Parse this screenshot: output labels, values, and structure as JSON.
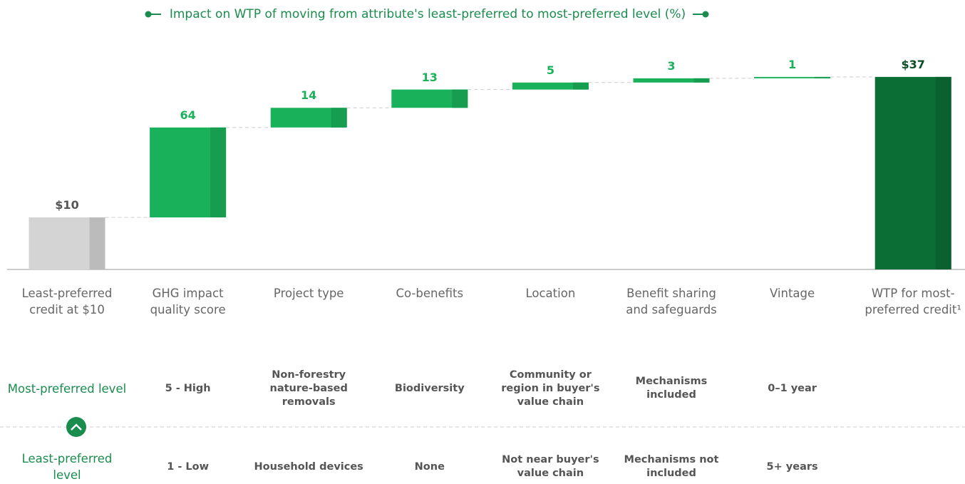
{
  "chart_data": {
    "type": "waterfall",
    "title": "Impact on WTP of moving from attribute's least-preferred to most-preferred level (%)",
    "categories": [
      "Least-preferred credit at $10",
      "GHG impact quality score",
      "Project type",
      "Co-benefits",
      "Location",
      "Benefit sharing and safeguards",
      "Vintage",
      "WTP for most-preferred credit¹"
    ],
    "values": [
      10,
      64,
      14,
      13,
      5,
      3,
      1,
      37
    ],
    "value_labels": [
      "$10",
      "64",
      "14",
      "13",
      "5",
      "3",
      "1",
      "$37"
    ],
    "colors": {
      "start": "#d4d4d4",
      "step": "#19b25a",
      "end": "#0b6e35"
    }
  },
  "table": {
    "rows": [
      {
        "label": "Most-preferred level",
        "values": [
          "5 - High",
          "Non-forestry nature-based removals",
          "Biodiversity",
          "Community or region in buyer's value chain",
          "Mechanisms included",
          "0–1 year"
        ]
      },
      {
        "label": "Least-preferred level",
        "values": [
          "1 - Low",
          "Household devices",
          "None",
          "Not near buyer's value chain",
          "Mechanisms not included",
          "5+ years"
        ]
      }
    ]
  }
}
